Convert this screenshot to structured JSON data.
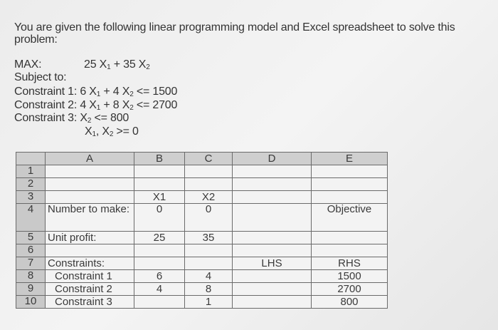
{
  "intro": [
    "You are given the following linear programming model and Excel spreadsheet to solve this",
    "problem:"
  ],
  "model": {
    "max_label": "MAX:",
    "objective": "25 X1 + 35 X2",
    "subject_to": "Subject to:",
    "constraints": [
      "Constraint 1:  6 X1 + 4 X2 <= 1500",
      "Constraint 2:  4 X1 + 8 X2 <= 2700",
      "Constraint 3: X2  <=  800"
    ],
    "nonneg": "X1, X2 >= 0"
  },
  "sheet": {
    "columns": [
      "",
      "A",
      "B",
      "C",
      "D",
      "E"
    ],
    "rows": [
      [
        "1",
        "",
        "",
        "",
        "",
        ""
      ],
      [
        "2",
        "",
        "",
        "",
        "",
        ""
      ],
      [
        "3",
        "",
        "X1",
        "X2",
        "",
        ""
      ],
      [
        "4",
        "Number to make:",
        "0",
        "0",
        "",
        "Objective"
      ],
      [
        "5",
        "Unit profit:",
        "25",
        "35",
        "",
        ""
      ],
      [
        "6",
        "",
        "",
        "",
        "",
        ""
      ],
      [
        "7",
        "Constraints:",
        "",
        "",
        "LHS",
        "RHS"
      ],
      [
        "8",
        "  Constraint 1",
        "6",
        "4",
        "",
        "1500"
      ],
      [
        "9",
        "  Constraint 2",
        "4",
        "8",
        "",
        "2700"
      ],
      [
        "10",
        "  Constraint 3",
        "",
        "1",
        "",
        "800"
      ]
    ]
  }
}
